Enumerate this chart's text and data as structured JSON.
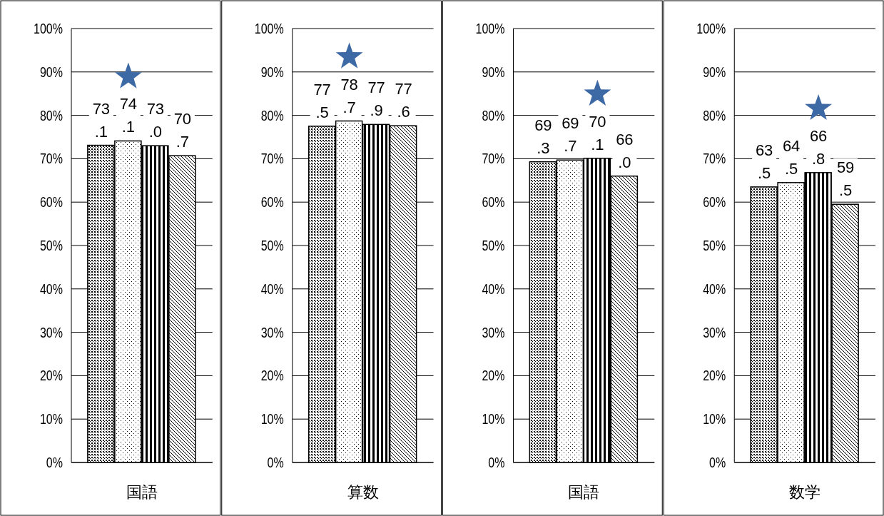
{
  "chart_data": [
    {
      "type": "bar",
      "categories": [
        "国語"
      ],
      "ylim": [
        0,
        100
      ],
      "yticks": [
        {
          "value": 0,
          "label": "0%"
        },
        {
          "value": 10,
          "label": "10%"
        },
        {
          "value": 20,
          "label": "20%"
        },
        {
          "value": 30,
          "label": "30%"
        },
        {
          "value": 40,
          "label": "40%"
        },
        {
          "value": 50,
          "label": "50%"
        },
        {
          "value": 60,
          "label": "60%"
        },
        {
          "value": 70,
          "label": "70%"
        },
        {
          "value": 80,
          "label": "80%"
        },
        {
          "value": 90,
          "label": "90%"
        },
        {
          "value": 100,
          "label": "100%"
        }
      ],
      "grid": "y",
      "series": [
        {
          "values": [
            73.1
          ],
          "value_labels": [
            "73.1"
          ]
        },
        {
          "values": [
            74.1
          ],
          "value_labels": [
            "74.1"
          ]
        },
        {
          "values": [
            73.0
          ],
          "value_labels": [
            "73.0"
          ]
        },
        {
          "values": [
            70.7
          ],
          "value_labels": [
            "70.7"
          ]
        }
      ]
    },
    {
      "type": "bar",
      "categories": [
        "算数"
      ],
      "ylim": [
        0,
        100
      ],
      "yticks": [
        {
          "value": 0,
          "label": "0%"
        },
        {
          "value": 10,
          "label": "10%"
        },
        {
          "value": 20,
          "label": "20%"
        },
        {
          "value": 30,
          "label": "30%"
        },
        {
          "value": 40,
          "label": "40%"
        },
        {
          "value": 50,
          "label": "50%"
        },
        {
          "value": 60,
          "label": "60%"
        },
        {
          "value": 70,
          "label": "70%"
        },
        {
          "value": 80,
          "label": "80%"
        },
        {
          "value": 90,
          "label": "90%"
        },
        {
          "value": 100,
          "label": "100%"
        }
      ],
      "grid": "y",
      "series": [
        {
          "values": [
            77.5
          ],
          "value_labels": [
            "77.5"
          ]
        },
        {
          "values": [
            78.7
          ],
          "value_labels": [
            "78.7"
          ]
        },
        {
          "values": [
            77.9
          ],
          "value_labels": [
            "77.9"
          ]
        },
        {
          "values": [
            77.6
          ],
          "value_labels": [
            "77.6"
          ]
        }
      ]
    },
    {
      "type": "bar",
      "categories": [
        "国語"
      ],
      "ylim": [
        0,
        100
      ],
      "yticks": [
        {
          "value": 0,
          "label": "0%"
        },
        {
          "value": 10,
          "label": "10%"
        },
        {
          "value": 20,
          "label": "20%"
        },
        {
          "value": 30,
          "label": "30%"
        },
        {
          "value": 40,
          "label": "40%"
        },
        {
          "value": 50,
          "label": "50%"
        },
        {
          "value": 60,
          "label": "60%"
        },
        {
          "value": 70,
          "label": "70%"
        },
        {
          "value": 80,
          "label": "80%"
        },
        {
          "value": 90,
          "label": "90%"
        },
        {
          "value": 100,
          "label": "100%"
        }
      ],
      "grid": "y",
      "series": [
        {
          "values": [
            69.3
          ],
          "value_labels": [
            "69.3"
          ]
        },
        {
          "values": [
            69.7
          ],
          "value_labels": [
            "69.7"
          ]
        },
        {
          "values": [
            70.1
          ],
          "value_labels": [
            "70.1"
          ]
        },
        {
          "values": [
            66.0
          ],
          "value_labels": [
            "66.0"
          ]
        }
      ]
    },
    {
      "type": "bar",
      "categories": [
        "数学"
      ],
      "ylim": [
        0,
        100
      ],
      "yticks": [
        {
          "value": 0,
          "label": "0%"
        },
        {
          "value": 10,
          "label": "10%"
        },
        {
          "value": 20,
          "label": "20%"
        },
        {
          "value": 30,
          "label": "30%"
        },
        {
          "value": 40,
          "label": "40%"
        },
        {
          "value": 50,
          "label": "50%"
        },
        {
          "value": 60,
          "label": "60%"
        },
        {
          "value": 70,
          "label": "70%"
        },
        {
          "value": 80,
          "label": "80%"
        },
        {
          "value": 90,
          "label": "90%"
        },
        {
          "value": 100,
          "label": "100%"
        }
      ],
      "grid": "y",
      "series": [
        {
          "values": [
            63.5
          ],
          "value_labels": [
            "63.5"
          ]
        },
        {
          "values": [
            64.5
          ],
          "value_labels": [
            "64.5"
          ]
        },
        {
          "values": [
            66.8
          ],
          "value_labels": [
            "66.8"
          ]
        },
        {
          "values": [
            59.5
          ],
          "value_labels": [
            "59.5"
          ]
        }
      ]
    }
  ]
}
